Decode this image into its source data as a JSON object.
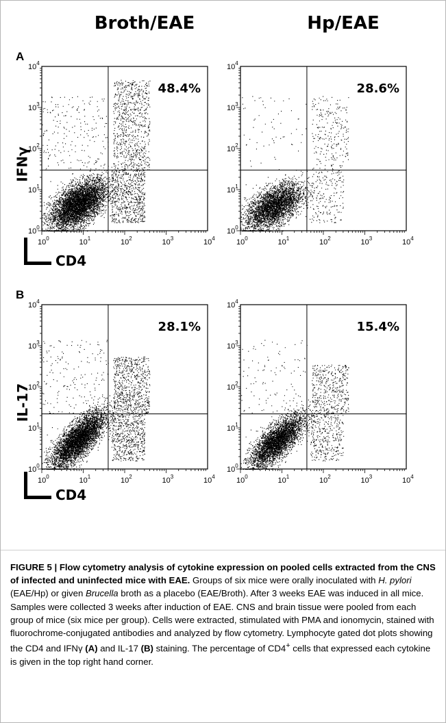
{
  "header": {
    "col1_title": "Broth/EAE",
    "col2_title": "Hp/EAE"
  },
  "panels": [
    {
      "letter": "A",
      "ylabel": "IFNγ",
      "xlabel": "CD4",
      "plots": [
        {
          "pct": "48.4%"
        },
        {
          "pct": "28.6%"
        }
      ]
    },
    {
      "letter": "B",
      "ylabel": "IL-17",
      "xlabel": "CD4",
      "plots": [
        {
          "pct": "28.1%"
        },
        {
          "pct": "15.4%"
        }
      ]
    }
  ],
  "chart_data": [
    {
      "type": "scatter",
      "panel": "A",
      "group": "Broth/EAE",
      "xlabel": "CD4",
      "ylabel": "IFNγ",
      "xscale": "log",
      "yscale": "log",
      "xlim": [
        1,
        10000
      ],
      "ylim": [
        1,
        10000
      ],
      "gate": {
        "x": 40,
        "y": 30
      },
      "annotation": "48.4%",
      "tick_labels": [
        "10^0",
        "10^1",
        "10^2",
        "10^3",
        "10^4"
      ]
    },
    {
      "type": "scatter",
      "panel": "A",
      "group": "Hp/EAE",
      "xlabel": "CD4",
      "ylabel": "IFNγ",
      "xscale": "log",
      "yscale": "log",
      "xlim": [
        1,
        10000
      ],
      "ylim": [
        1,
        10000
      ],
      "gate": {
        "x": 40,
        "y": 30
      },
      "annotation": "28.6%",
      "tick_labels": [
        "10^0",
        "10^1",
        "10^2",
        "10^3",
        "10^4"
      ]
    },
    {
      "type": "scatter",
      "panel": "B",
      "group": "Broth/EAE",
      "xlabel": "CD4",
      "ylabel": "IL-17",
      "xscale": "log",
      "yscale": "log",
      "xlim": [
        1,
        10000
      ],
      "ylim": [
        1,
        10000
      ],
      "gate": {
        "x": 40,
        "y": 22
      },
      "annotation": "28.1%",
      "tick_labels": [
        "10^0",
        "10^1",
        "10^2",
        "10^3",
        "10^4"
      ]
    },
    {
      "type": "scatter",
      "panel": "B",
      "group": "Hp/EAE",
      "xlabel": "CD4",
      "ylabel": "IL-17",
      "xscale": "log",
      "yscale": "log",
      "xlim": [
        1,
        10000
      ],
      "ylim": [
        1,
        10000
      ],
      "gate": {
        "x": 40,
        "y": 22
      },
      "annotation": "15.4%",
      "tick_labels": [
        "10^0",
        "10^1",
        "10^2",
        "10^3",
        "10^4"
      ]
    }
  ],
  "caption": {
    "title": "FIGURE 5 | Flow cytometry analysis of cytokine expression on pooled cells extracted from the CNS of infected and uninfected mice with EAE.",
    "s1": " Groups of six mice were orally inoculated with ",
    "s1_italic": "H. pylori",
    "s2": " (EAE/Hp) or given ",
    "s2_italic": "Brucella",
    "s3": " broth as a placebo (EAE/Broth). After 3 weeks EAE was induced in all mice. Samples were collected 3 weeks after induction of EAE. CNS and brain tissue were pooled from each group of mice (six mice per group). Cells were extracted, stimulated with PMA and ionomycin, stained with fluorochrome-conjugated antibodies and analyzed by flow cytometry. Lymphocyte gated dot plots showing the CD4 and IFNγ ",
    "s3_bold": "(A)",
    "s4": " and IL-17 ",
    "s4_bold": "(B)",
    "s5": " staining. The percentage of CD4",
    "s5_sup": "+",
    "s6": " cells that expressed each cytokine is given in the top right hand corner."
  }
}
